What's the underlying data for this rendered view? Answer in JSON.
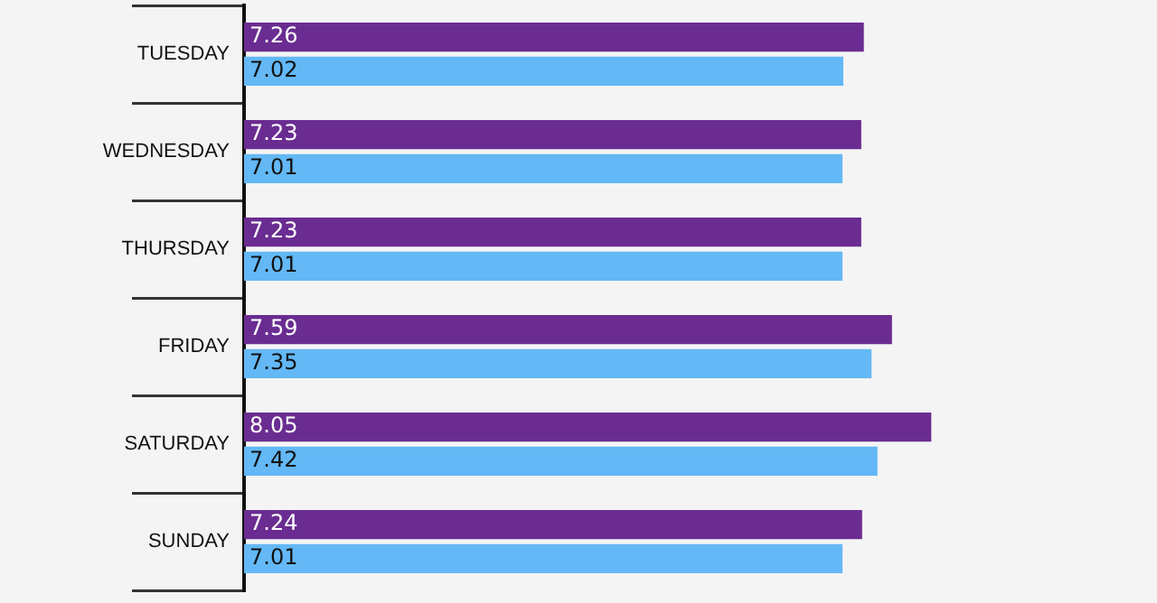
{
  "chart_data": {
    "type": "bar",
    "orientation": "horizontal",
    "categories": [
      "TUESDAY",
      "WEDNESDAY",
      "THURSDAY",
      "FRIDAY",
      "SATURDAY",
      "SUNDAY"
    ],
    "series": [
      {
        "color": "#6a2c91",
        "values": [
          7.26,
          7.23,
          7.23,
          7.59,
          8.05,
          7.24
        ]
      },
      {
        "color": "#63b8f5",
        "values": [
          7.02,
          7.01,
          7.01,
          7.35,
          7.42,
          7.01
        ]
      }
    ],
    "tick_labels": "y",
    "data_labels": true,
    "legend": false,
    "grid": false
  }
}
